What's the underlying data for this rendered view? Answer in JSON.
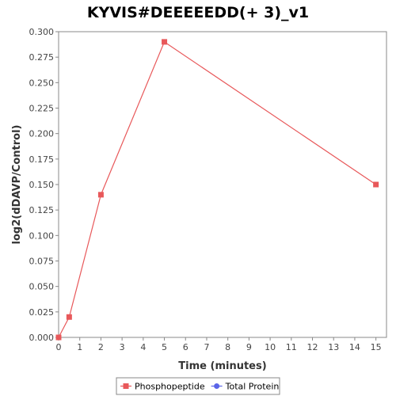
{
  "chart_data": {
    "type": "line",
    "title": "KYVIS#DEEEEEDD(+ 3)_v1",
    "xlabel": "Time (minutes)",
    "ylabel": "log2(dDAVP/Control)",
    "xlim": [
      0,
      15.5
    ],
    "ylim": [
      0,
      0.3
    ],
    "xticks": [
      0,
      1,
      2,
      3,
      4,
      5,
      6,
      7,
      8,
      9,
      10,
      11,
      12,
      13,
      14,
      15
    ],
    "yticks": [
      "0.000",
      "0.025",
      "0.050",
      "0.075",
      "0.100",
      "0.125",
      "0.150",
      "0.175",
      "0.200",
      "0.225",
      "0.250",
      "0.275",
      "0.300"
    ],
    "grid": false,
    "legend_position": "bottom",
    "series": [
      {
        "name": "Phosphopeptide",
        "color": "#e8585a",
        "marker": "square",
        "x": [
          0,
          0.5,
          2,
          5,
          15
        ],
        "y": [
          0.0,
          0.02,
          0.14,
          0.29,
          0.15
        ]
      },
      {
        "name": "Total Protein",
        "color": "#5a64e8",
        "marker": "circle",
        "x": [],
        "y": []
      }
    ]
  }
}
